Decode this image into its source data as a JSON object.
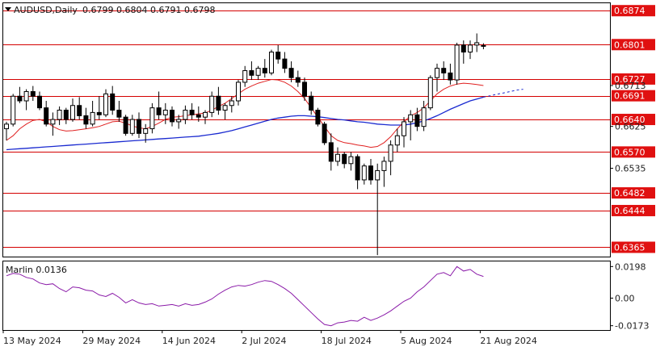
{
  "header": {
    "symbol": "AUDUSD,Daily",
    "ohlc": "0.6799 0.6804 0.6791 0.6798"
  },
  "colors": {
    "level_line": "#d40000",
    "level_label_bg": "#e01010",
    "ma_fast": "#e02020",
    "ma_slow": "#1a2ad0",
    "oscillator": "#8a1aa8",
    "bull_candle": "#ffffff",
    "bear_candle": "#000000",
    "grid_border": "#000000"
  },
  "chart_data": [
    {
      "type": "candlestick",
      "title": "AUDUSD,Daily",
      "ylim": [
        0.6345,
        0.689
      ],
      "y_ticks": [
        "0.6874",
        "0.6801",
        "0.6727",
        "0.6713",
        "0.6691",
        "0.6640",
        "0.6625",
        "0.6570",
        "0.6535",
        "0.6482",
        "0.6444",
        "0.6365"
      ],
      "x_date_labels": [
        "13 May 2024",
        "29 May 2024",
        "14 Jun 2024",
        "2 Jul 2024",
        "18 Jul 2024",
        "5 Aug 2024",
        "21 Aug 2024"
      ],
      "x_label_bar_index": [
        0,
        12,
        24,
        36,
        48,
        60,
        72
      ],
      "levels": [
        0.6874,
        0.6801,
        0.6727,
        0.6691,
        0.664,
        0.657,
        0.6482,
        0.6444,
        0.6365
      ],
      "candles": [
        [
          0.662,
          0.6635,
          0.6595,
          0.663
        ],
        [
          0.663,
          0.6695,
          0.6625,
          0.669
        ],
        [
          0.669,
          0.671,
          0.6675,
          0.668
        ],
        [
          0.668,
          0.6705,
          0.666,
          0.67
        ],
        [
          0.67,
          0.6712,
          0.668,
          0.669
        ],
        [
          0.669,
          0.67,
          0.666,
          0.6665
        ],
        [
          0.6665,
          0.668,
          0.6625,
          0.663
        ],
        [
          0.663,
          0.6655,
          0.6605,
          0.664
        ],
        [
          0.664,
          0.6668,
          0.6628,
          0.666
        ],
        [
          0.666,
          0.6665,
          0.663,
          0.664
        ],
        [
          0.664,
          0.6685,
          0.6635,
          0.667
        ],
        [
          0.667,
          0.6688,
          0.664,
          0.6648
        ],
        [
          0.6648,
          0.6665,
          0.662,
          0.663
        ],
        [
          0.663,
          0.668,
          0.6625,
          0.6655
        ],
        [
          0.6655,
          0.669,
          0.664,
          0.665
        ],
        [
          0.665,
          0.6705,
          0.6645,
          0.6695
        ],
        [
          0.6695,
          0.6712,
          0.665,
          0.666
        ],
        [
          0.666,
          0.668,
          0.6635,
          0.6645
        ],
        [
          0.6645,
          0.665,
          0.6605,
          0.661
        ],
        [
          0.661,
          0.665,
          0.6605,
          0.664
        ],
        [
          0.664,
          0.6655,
          0.66,
          0.661
        ],
        [
          0.661,
          0.663,
          0.659,
          0.662
        ],
        [
          0.662,
          0.6675,
          0.661,
          0.6665
        ],
        [
          0.6665,
          0.67,
          0.664,
          0.665
        ],
        [
          0.665,
          0.6675,
          0.663,
          0.666
        ],
        [
          0.666,
          0.6668,
          0.6625,
          0.6635
        ],
        [
          0.6635,
          0.665,
          0.662,
          0.664
        ],
        [
          0.664,
          0.667,
          0.663,
          0.666
        ],
        [
          0.666,
          0.6675,
          0.664,
          0.665
        ],
        [
          0.665,
          0.6668,
          0.6635,
          0.6645
        ],
        [
          0.6645,
          0.666,
          0.663,
          0.6655
        ],
        [
          0.6655,
          0.67,
          0.6645,
          0.669
        ],
        [
          0.669,
          0.671,
          0.665,
          0.666
        ],
        [
          0.666,
          0.6675,
          0.664,
          0.667
        ],
        [
          0.667,
          0.669,
          0.6655,
          0.668
        ],
        [
          0.668,
          0.6725,
          0.667,
          0.672
        ],
        [
          0.672,
          0.6755,
          0.671,
          0.6745
        ],
        [
          0.6745,
          0.6765,
          0.6725,
          0.6735
        ],
        [
          0.6735,
          0.6755,
          0.6725,
          0.675
        ],
        [
          0.675,
          0.677,
          0.673,
          0.674
        ],
        [
          0.674,
          0.679,
          0.6735,
          0.6785
        ],
        [
          0.6785,
          0.68,
          0.676,
          0.677
        ],
        [
          0.677,
          0.6785,
          0.674,
          0.675
        ],
        [
          0.675,
          0.6765,
          0.672,
          0.673
        ],
        [
          0.673,
          0.6745,
          0.671,
          0.672
        ],
        [
          0.672,
          0.673,
          0.668,
          0.669
        ],
        [
          0.669,
          0.67,
          0.665,
          0.666
        ],
        [
          0.666,
          0.6665,
          0.6625,
          0.663
        ],
        [
          0.663,
          0.6635,
          0.6585,
          0.659
        ],
        [
          0.659,
          0.661,
          0.653,
          0.655
        ],
        [
          0.655,
          0.658,
          0.654,
          0.6565
        ],
        [
          0.6565,
          0.657,
          0.6535,
          0.6545
        ],
        [
          0.6545,
          0.657,
          0.653,
          0.656
        ],
        [
          0.656,
          0.6565,
          0.649,
          0.651
        ],
        [
          0.651,
          0.6545,
          0.65,
          0.654
        ],
        [
          0.654,
          0.6555,
          0.65,
          0.651
        ],
        [
          0.651,
          0.6545,
          0.6348,
          0.653
        ],
        [
          0.653,
          0.656,
          0.6495,
          0.655
        ],
        [
          0.655,
          0.6595,
          0.652,
          0.6585
        ],
        [
          0.6585,
          0.662,
          0.657,
          0.6605
        ],
        [
          0.6605,
          0.6645,
          0.658,
          0.6635
        ],
        [
          0.6635,
          0.666,
          0.6595,
          0.665
        ],
        [
          0.665,
          0.6665,
          0.6615,
          0.6625
        ],
        [
          0.6625,
          0.668,
          0.6615,
          0.6665
        ],
        [
          0.6665,
          0.6735,
          0.666,
          0.673
        ],
        [
          0.673,
          0.676,
          0.67,
          0.675
        ],
        [
          0.675,
          0.6765,
          0.6725,
          0.674
        ],
        [
          0.674,
          0.676,
          0.6715,
          0.6725
        ],
        [
          0.6725,
          0.6805,
          0.6715,
          0.68
        ],
        [
          0.68,
          0.681,
          0.676,
          0.6785
        ],
        [
          0.6785,
          0.681,
          0.677,
          0.68
        ],
        [
          0.68,
          0.6825,
          0.6785,
          0.6805
        ],
        [
          0.6799,
          0.6804,
          0.6791,
          0.6798
        ]
      ],
      "ma_fast": [
        0.6595,
        0.6605,
        0.662,
        0.663,
        0.6638,
        0.664,
        0.6635,
        0.6625,
        0.6618,
        0.6615,
        0.6616,
        0.6618,
        0.662,
        0.6622,
        0.6625,
        0.663,
        0.6635,
        0.6636,
        0.6632,
        0.6626,
        0.6622,
        0.662,
        0.6625,
        0.6632,
        0.664,
        0.6645,
        0.6646,
        0.6648,
        0.665,
        0.6652,
        0.6654,
        0.666,
        0.6668,
        0.6675,
        0.6685,
        0.6695,
        0.6705,
        0.6712,
        0.6718,
        0.6722,
        0.6726,
        0.6725,
        0.672,
        0.6712,
        0.67,
        0.6685,
        0.6665,
        0.6645,
        0.6625,
        0.6605,
        0.6595,
        0.659,
        0.6588,
        0.6585,
        0.6583,
        0.658,
        0.6582,
        0.659,
        0.6603,
        0.662,
        0.6635,
        0.6648,
        0.6655,
        0.6665,
        0.668,
        0.6695,
        0.6705,
        0.6712,
        0.6716,
        0.6718,
        0.6717,
        0.6715,
        0.6713
      ],
      "ma_slow_start_index": 0,
      "ma_slow": [
        0.6575,
        0.6576,
        0.6577,
        0.6578,
        0.6579,
        0.658,
        0.6581,
        0.6582,
        0.6583,
        0.6584,
        0.6585,
        0.6586,
        0.6587,
        0.6588,
        0.6589,
        0.659,
        0.6591,
        0.6592,
        0.6593,
        0.6594,
        0.6595,
        0.6596,
        0.6597,
        0.6598,
        0.6599,
        0.66,
        0.6601,
        0.6602,
        0.6603,
        0.6604,
        0.6606,
        0.6608,
        0.661,
        0.6613,
        0.6616,
        0.662,
        0.6624,
        0.6628,
        0.6632,
        0.6636,
        0.664,
        0.6643,
        0.6645,
        0.6647,
        0.6648,
        0.6648,
        0.6647,
        0.6646,
        0.6644,
        0.6642,
        0.664,
        0.6639,
        0.6637,
        0.6635,
        0.6634,
        0.6632,
        0.663,
        0.6629,
        0.6628,
        0.6628,
        0.6628,
        0.663,
        0.6633,
        0.6637,
        0.6642,
        0.6648,
        0.6655,
        0.6662,
        0.6668,
        0.6674,
        0.668,
        0.6684,
        0.6688
      ],
      "ma_slow_forecast": [
        0.6688,
        0.6691,
        0.6694,
        0.6697,
        0.67,
        0.6703,
        0.6705
      ]
    },
    {
      "type": "line",
      "title": "Marlin 0.0136",
      "ylim": [
        -0.02,
        0.023
      ],
      "y_ticks": [
        "0.0198",
        "0.00",
        "-0.0173"
      ],
      "series": [
        {
          "name": "Marlin",
          "values": [
            0.014,
            0.0155,
            0.015,
            0.013,
            0.012,
            0.0095,
            0.0085,
            0.009,
            0.006,
            0.004,
            0.007,
            0.0065,
            0.005,
            0.0045,
            0.002,
            0.001,
            0.003,
            0.0005,
            -0.003,
            -0.001,
            -0.003,
            -0.004,
            -0.0035,
            -0.005,
            -0.0045,
            -0.004,
            -0.005,
            -0.0035,
            -0.0045,
            -0.004,
            -0.0025,
            -0.0005,
            0.0025,
            0.005,
            0.007,
            0.008,
            0.0075,
            0.0085,
            0.01,
            0.011,
            0.0105,
            0.0085,
            0.006,
            0.003,
            -0.001,
            -0.005,
            -0.009,
            -0.013,
            -0.0165,
            -0.0173,
            -0.0155,
            -0.015,
            -0.014,
            -0.0145,
            -0.012,
            -0.014,
            -0.0125,
            -0.0105,
            -0.008,
            -0.005,
            -0.002,
            0.0,
            0.004,
            0.007,
            0.011,
            0.015,
            0.016,
            0.014,
            0.0198,
            0.017,
            0.018,
            0.015,
            0.0136
          ]
        }
      ]
    }
  ]
}
